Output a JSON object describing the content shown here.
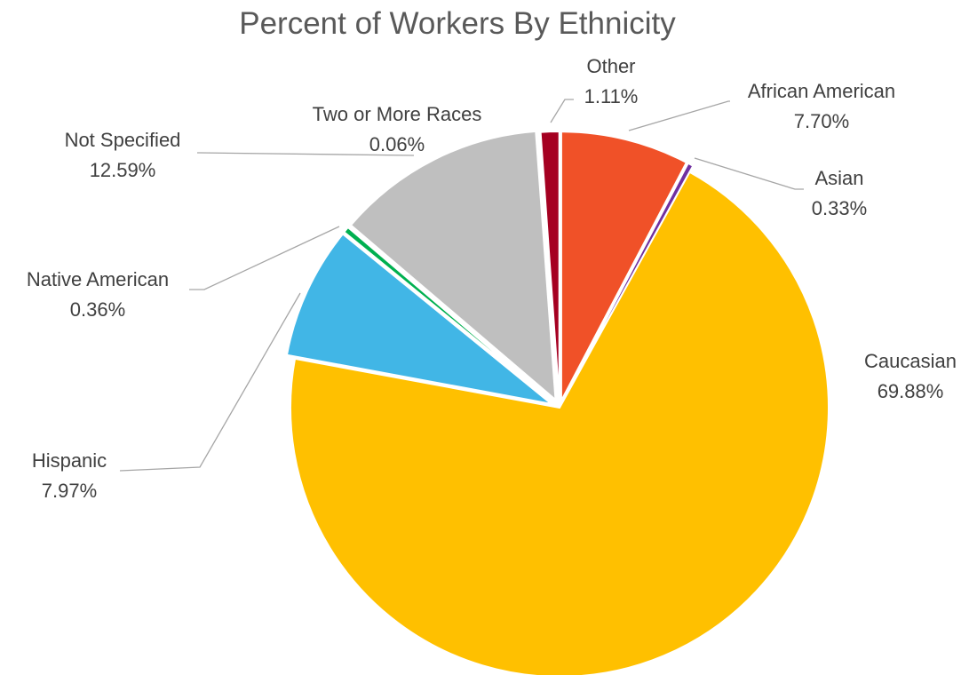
{
  "chart_data": {
    "type": "pie",
    "title": "Percent of Workers By Ethnicity",
    "legend": "none",
    "slices": [
      {
        "label": "African American",
        "value": 7.7,
        "display": "7.70%",
        "color": "#F05128"
      },
      {
        "label": "Asian",
        "value": 0.33,
        "display": "0.33%",
        "color": "#7030A0"
      },
      {
        "label": "Caucasian",
        "value": 69.88,
        "display": "69.88%",
        "color": "#FFC000"
      },
      {
        "label": "Hispanic",
        "value": 7.97,
        "display": "7.97%",
        "color": "#41B6E6"
      },
      {
        "label": "Native American",
        "value": 0.36,
        "display": "0.36%",
        "color": "#00B050"
      },
      {
        "label": "Not Specified",
        "value": 12.59,
        "display": "12.59%",
        "color": "#BFBFBF"
      },
      {
        "label": "Two or More Races",
        "value": 0.06,
        "display": "0.06%",
        "color": "#7F7F7F"
      },
      {
        "label": "Other",
        "value": 1.11,
        "display": "1.11%",
        "color": "#A50021"
      }
    ]
  }
}
